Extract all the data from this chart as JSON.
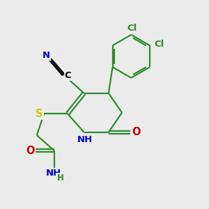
{
  "background_color": "#ebebeb",
  "bond_color": "#2d8c2d",
  "bond_width": 1.6,
  "atom_colors": {
    "C": "#000000",
    "N": "#0000cc",
    "O": "#cc0000",
    "S": "#cccc00",
    "Cl": "#2d8c2d",
    "H": "#2d8c2d"
  },
  "font_size": 9.5
}
